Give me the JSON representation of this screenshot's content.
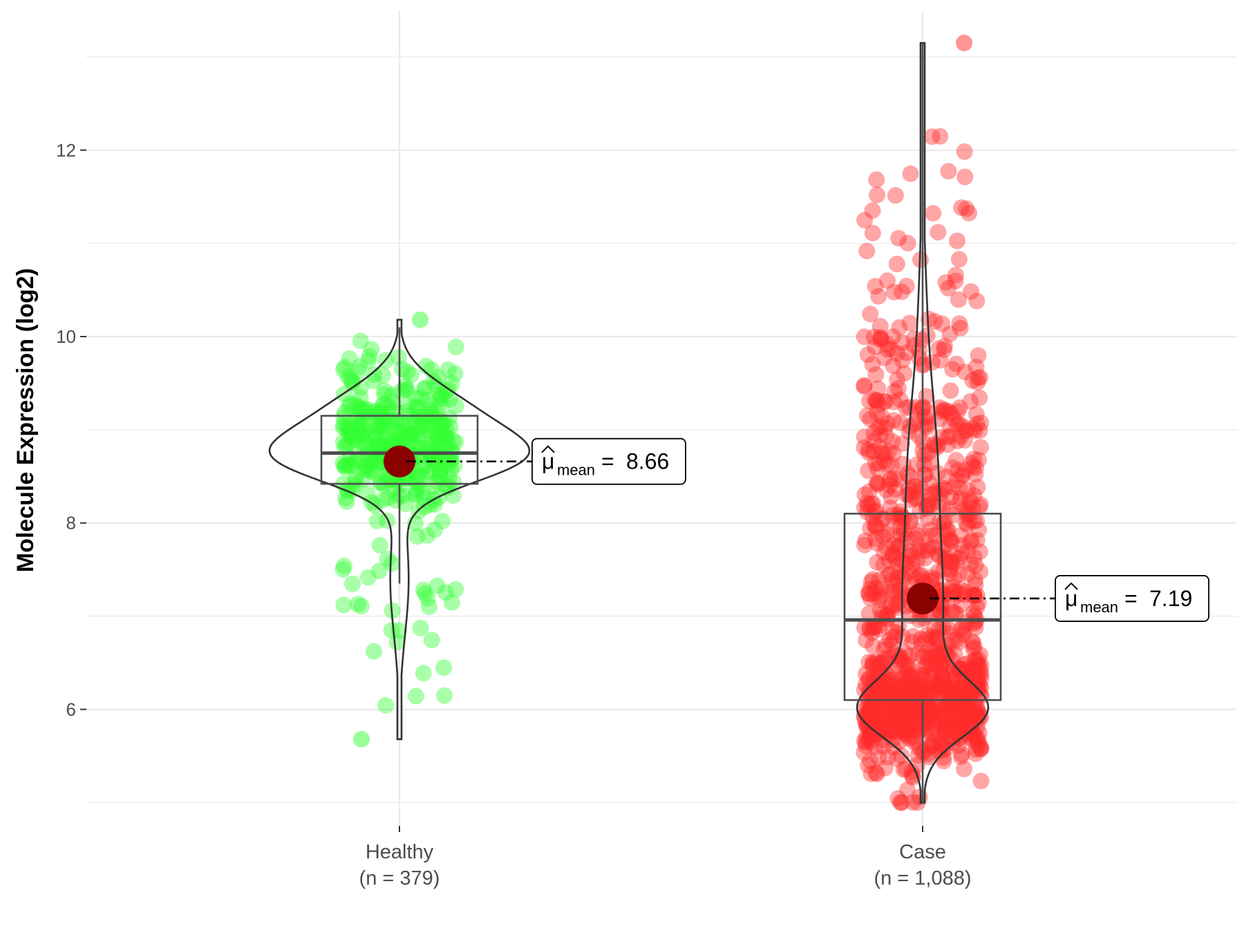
{
  "chart_data": {
    "type": "violin",
    "xlabel": "",
    "ylabel": "Molecule Expression (log2)",
    "ylim": [
      4.75,
      13.5
    ],
    "yticks": [
      6,
      8,
      10,
      12
    ],
    "grid": true,
    "groups": [
      {
        "label": "Healthy",
        "n_label": "(n = 379)",
        "color": "#33ff33",
        "whisker_low": 7.35,
        "q1": 8.42,
        "median": 8.75,
        "q3": 9.15,
        "whisker_high": 10.1,
        "mean": 8.66,
        "min": 5.68,
        "max": 10.18,
        "annotation": {
          "symbol": "μ",
          "subscript": "mean",
          "equals": "=",
          "value": "8.66"
        }
      },
      {
        "label": "Case",
        "n_label": "(n = 1,088)",
        "color": "#ff2a2a",
        "whisker_low": 5.0,
        "q1": 6.1,
        "median": 6.96,
        "q3": 8.1,
        "whisker_high": 13.15,
        "mean": 7.19,
        "min": 5.0,
        "max": 13.15,
        "annotation": {
          "symbol": "μ",
          "subscript": "mean",
          "equals": "=",
          "value": "7.19"
        }
      }
    ]
  }
}
